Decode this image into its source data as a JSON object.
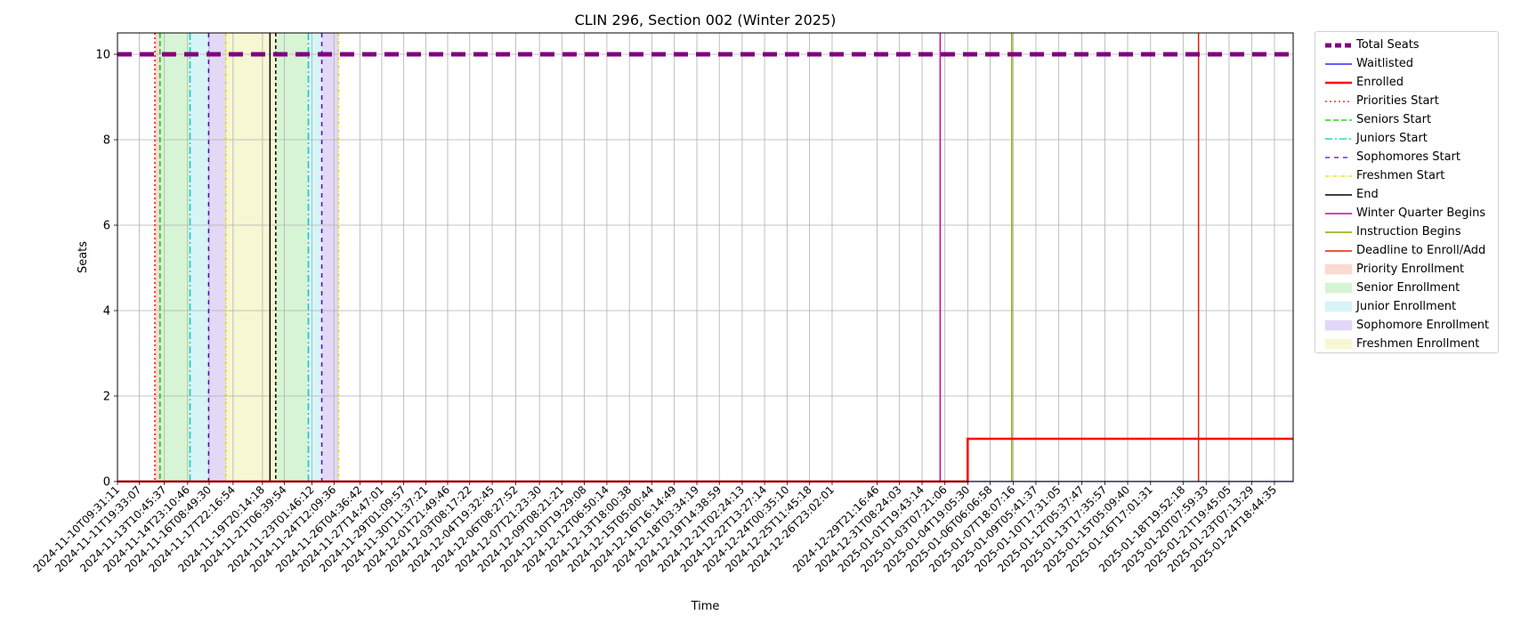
{
  "chart_data": {
    "type": "line",
    "title": "CLIN 296, Section 002 (Winter 2025)",
    "xlabel": "Time",
    "ylabel": "Seats",
    "xlim": [
      "2024-11-10T09:31:11",
      "2025-01-26T00:00:00"
    ],
    "ylim": [
      0,
      10.5
    ],
    "yticks": [
      0,
      2,
      4,
      6,
      8,
      10
    ],
    "grid": true,
    "legend_position": "outside-right",
    "xtick_labels": [
      "2024-11-10T09:31:11",
      "2024-11-11T19:33:07",
      "2024-11-13T10:45:37",
      "2024-11-14T23:10:46",
      "2024-11-16T08:49:30",
      "2024-11-17T22:16:54",
      "2024-11-19T20:14:18",
      "2024-11-21T06:39:54",
      "2024-11-23T01:46:12",
      "2024-11-24T12:09:36",
      "2024-11-26T04:36:42",
      "2024-11-27T14:47:01",
      "2024-11-29T01:09:57",
      "2024-11-30T11:37:21",
      "2024-12-01T21:49:46",
      "2024-12-03T08:17:22",
      "2024-12-04T19:32:45",
      "2024-12-06T08:27:52",
      "2024-12-07T21:23:30",
      "2024-12-09T08:21:21",
      "2024-12-10T19:29:08",
      "2024-12-12T06:50:14",
      "2024-12-13T18:00:38",
      "2024-12-15T05:00:44",
      "2024-12-16T16:14:49",
      "2024-12-18T03:34:19",
      "2024-12-19T14:38:59",
      "2024-12-21T02:24:13",
      "2024-12-22T13:27:14",
      "2024-12-24T00:35:10",
      "2024-12-25T11:45:18",
      "2024-12-26T23:02:01",
      "2024-12-29T21:16:46",
      "2024-12-31T08:24:03",
      "2025-01-01T19:43:14",
      "2025-01-03T07:21:06",
      "2025-01-04T19:05:30",
      "2025-01-06T06:06:58",
      "2025-01-07T18:07:16",
      "2025-01-09T05:41:37",
      "2025-01-10T17:31:05",
      "2025-01-12T05:37:47",
      "2025-01-13T17:35:57",
      "2025-01-15T05:09:40",
      "2025-01-16T17:01:31",
      "2025-01-18T19:52:18",
      "2025-01-20T07:59:33",
      "2025-01-21T19:45:05",
      "2025-01-23T07:13:29",
      "2025-01-24T18:44:35"
    ],
    "series": [
      {
        "name": "Total Seats",
        "color": "#800080",
        "style": "dashed-thick",
        "x": [
          "2024-11-10T09:31:11",
          "2025-01-26T00:00:00"
        ],
        "y": [
          10,
          10
        ]
      },
      {
        "name": "Waitlisted",
        "color": "#0000ff",
        "style": "solid",
        "x": [
          "2024-11-10T09:31:11",
          "2025-01-26T00:00:00"
        ],
        "y": [
          0,
          0
        ]
      },
      {
        "name": "Enrolled",
        "color": "#ff0000",
        "style": "solid-thick",
        "step": true,
        "x": [
          "2024-11-10T09:31:11",
          "2025-01-04T19:05:30",
          "2025-01-04T19:05:30",
          "2025-01-26T00:00:00"
        ],
        "y": [
          0,
          0,
          1,
          1
        ]
      }
    ],
    "markers": [
      {
        "name": "Priorities Start",
        "color": "#ff0000",
        "dash": "2,3",
        "times": [
          "2024-11-12T20:00:00"
        ]
      },
      {
        "name": "Seniors Start",
        "color": "#00cc00",
        "dash": "6,3",
        "times": [
          "2024-11-13T04:00:00"
        ]
      },
      {
        "name": "Juniors Start",
        "color": "#00cccc",
        "dash": "8,3,2,3",
        "times": [
          "2024-11-15T03:00:00",
          "2024-11-22T20:00:00"
        ]
      },
      {
        "name": "Sophomores Start",
        "color": "#5500cc",
        "dash": "5,5",
        "times": [
          "2024-11-16T08:00:00",
          "2024-11-23T17:00:00"
        ]
      },
      {
        "name": "Freshmen Start",
        "color": "#dddd00",
        "dash": "4,2,1,2",
        "times": [
          "2024-11-17T11:00:00",
          "2024-11-24T19:00:00"
        ]
      },
      {
        "name": "End",
        "color": "#000000",
        "dash": "",
        "times": [
          "2024-11-20T08:00:00"
        ]
      },
      {
        "name": "",
        "color": "#000000",
        "dash": "4,3",
        "times": [
          "2024-11-20T17:00:00"
        ]
      },
      {
        "name": "Winter Quarter Begins",
        "color": "#cc00aa",
        "dash": "",
        "times": [
          "2025-01-03T00:00:00"
        ]
      },
      {
        "name": "Instruction Begins",
        "color": "#88aa00",
        "dash": "",
        "times": [
          "2025-01-07T16:00:00"
        ]
      },
      {
        "name": "Deadline to Enroll/Add",
        "color": "#dd2200",
        "dash": "",
        "times": [
          "2025-01-19T20:00:00"
        ]
      }
    ],
    "spans": [
      {
        "name": "Priority Enrollment",
        "color": "#f4b09a",
        "ranges": [
          [
            "2024-11-12T20:00:00",
            "2024-11-13T04:00:00"
          ]
        ]
      },
      {
        "name": "Senior Enrollment",
        "color": "#a6e8a0",
        "ranges": [
          [
            "2024-11-13T04:00:00",
            "2024-11-15T03:00:00"
          ],
          [
            "2024-11-20T17:00:00",
            "2024-11-22T20:00:00"
          ]
        ]
      },
      {
        "name": "Junior Enrollment",
        "color": "#a6e8ee",
        "ranges": [
          [
            "2024-11-15T03:00:00",
            "2024-11-16T08:00:00"
          ],
          [
            "2024-11-22T20:00:00",
            "2024-11-23T17:00:00"
          ]
        ]
      },
      {
        "name": "Sophomore Enrollment",
        "color": "#c0a8ec",
        "ranges": [
          [
            "2024-11-16T08:00:00",
            "2024-11-17T11:00:00"
          ],
          [
            "2024-11-23T17:00:00",
            "2024-11-24T19:00:00"
          ]
        ]
      },
      {
        "name": "Freshmen Enrollment",
        "color": "#eeeea0",
        "ranges": [
          [
            "2024-11-17T11:00:00",
            "2024-11-20T17:00:00"
          ]
        ]
      }
    ]
  },
  "legend": {
    "items": [
      {
        "label": "Total Seats",
        "kind": "line",
        "color": "#800080",
        "dash": "7,4",
        "width": 5
      },
      {
        "label": "Waitlisted",
        "kind": "line",
        "color": "#0000ff",
        "dash": "",
        "width": 1.2
      },
      {
        "label": "Enrolled",
        "kind": "line",
        "color": "#ff0000",
        "dash": "",
        "width": 2.5
      },
      {
        "label": "Priorities Start",
        "kind": "line",
        "color": "#ff0000",
        "dash": "2,3",
        "width": 1.3
      },
      {
        "label": "Seniors Start",
        "kind": "line",
        "color": "#00cc00",
        "dash": "6,3",
        "width": 1.3
      },
      {
        "label": "Juniors Start",
        "kind": "line",
        "color": "#00cccc",
        "dash": "8,3,2,3",
        "width": 1.3
      },
      {
        "label": "Sophomores Start",
        "kind": "line",
        "color": "#5500cc",
        "dash": "5,5",
        "width": 1.3
      },
      {
        "label": "Freshmen Start",
        "kind": "line",
        "color": "#dddd00",
        "dash": "4,2,1,2",
        "width": 1.3
      },
      {
        "label": "End",
        "kind": "line",
        "color": "#000000",
        "dash": "",
        "width": 1.5
      },
      {
        "label": "Winter Quarter Begins",
        "kind": "line",
        "color": "#cc00aa",
        "dash": "",
        "width": 1.5
      },
      {
        "label": "Instruction Begins",
        "kind": "line",
        "color": "#88aa00",
        "dash": "",
        "width": 1.5
      },
      {
        "label": "Deadline to Enroll/Add",
        "kind": "line",
        "color": "#dd2200",
        "dash": "",
        "width": 1.5
      },
      {
        "label": "Priority Enrollment",
        "kind": "patch",
        "color": "#f4b09a"
      },
      {
        "label": "Senior Enrollment",
        "kind": "patch",
        "color": "#a6e8a0"
      },
      {
        "label": "Junior Enrollment",
        "kind": "patch",
        "color": "#a6e8ee"
      },
      {
        "label": "Sophomore Enrollment",
        "kind": "patch",
        "color": "#c0a8ec"
      },
      {
        "label": "Freshmen Enrollment",
        "kind": "patch",
        "color": "#eeeea0"
      }
    ]
  }
}
